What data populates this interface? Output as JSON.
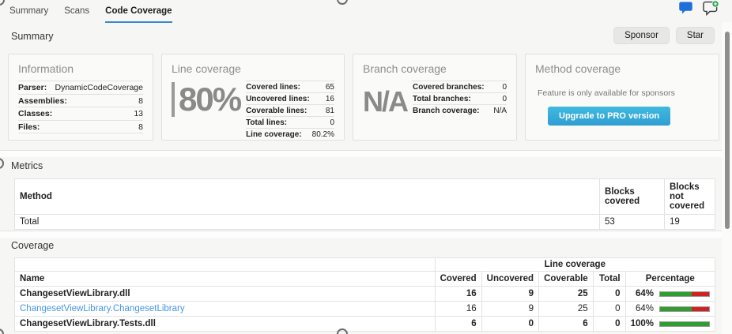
{
  "tabs": [
    {
      "label": "Summary",
      "active": false
    },
    {
      "label": "Scans",
      "active": false
    },
    {
      "label": "Code Coverage",
      "active": true
    }
  ],
  "sections": {
    "summary": {
      "title": "Summary",
      "buttons": {
        "sponsor": "Sponsor",
        "star": "Star"
      },
      "cards": {
        "information": {
          "title": "Information",
          "rows": [
            [
              "Parser:",
              "DynamicCodeCoverage"
            ],
            [
              "Assemblies:",
              "8"
            ],
            [
              "Classes:",
              "13"
            ],
            [
              "Files:",
              "8"
            ]
          ]
        },
        "line_coverage": {
          "title": "Line coverage",
          "big_value": "80%",
          "rows": [
            [
              "Covered lines:",
              "65"
            ],
            [
              "Uncovered lines:",
              "16"
            ],
            [
              "Coverable lines:",
              "81"
            ],
            [
              "Total lines:",
              "0"
            ],
            [
              "Line coverage:",
              "80.2%"
            ]
          ]
        },
        "branch_coverage": {
          "title": "Branch coverage",
          "big_value": "N/A",
          "rows": [
            [
              "Covered branches:",
              "0"
            ],
            [
              "Total branches:",
              "0"
            ],
            [
              "Branch coverage:",
              "N/A"
            ]
          ]
        },
        "method_coverage": {
          "title": "Method coverage",
          "note": "Feature is only available for sponsors",
          "button": "Upgrade to PRO version"
        }
      }
    },
    "metrics": {
      "title": "Metrics",
      "table": {
        "headers": [
          "Method",
          "Blocks covered",
          "Blocks not covered"
        ],
        "rows": [
          [
            "Total",
            "53",
            "19"
          ]
        ]
      }
    },
    "coverage": {
      "title": "Coverage",
      "table": {
        "group_header": "Line coverage",
        "headers": [
          "Name",
          "Covered",
          "Uncovered",
          "Coverable",
          "Total",
          "Percentage"
        ],
        "rows": [
          {
            "name": "ChangesetViewLibrary.dll",
            "covered": "16",
            "uncovered": "9",
            "coverable": "25",
            "total": "0",
            "percentage": "64%",
            "pct": 64
          },
          {
            "name": "ChangesetViewLibrary.ChangesetLibrary",
            "covered": "16",
            "uncovered": "9",
            "coverable": "25",
            "total": "0",
            "percentage": "64%",
            "pct": 64
          },
          {
            "name": "ChangesetViewLibrary.Tests.dll",
            "covered": "6",
            "uncovered": "0",
            "coverable": "6",
            "total": "0",
            "percentage": "100%",
            "pct": 100
          }
        ]
      }
    }
  },
  "icons": {
    "comment": "comment-icon",
    "add_comment": "add-comment-icon"
  },
  "colors": {
    "tab_accent": "#3a87d4",
    "link": "#4596e8",
    "bar_green": "#2f9e2f",
    "bar_red": "#d42020",
    "pro_button_top": "#41bade",
    "pro_button_bottom": "#2f9ed3",
    "comment_icon_blue": "#1e6fd9",
    "add_badge_green": "#2da44e"
  }
}
